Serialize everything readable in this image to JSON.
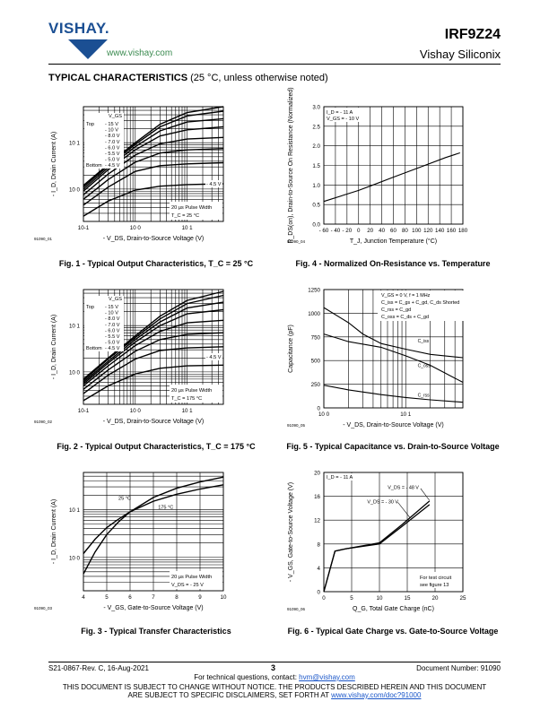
{
  "header": {
    "logo_text": "VISHAY.",
    "url": "www.vishay.com",
    "part_number": "IRF9Z24",
    "company": "Vishay Siliconix"
  },
  "section_title": "TYPICAL CHARACTERISTICS",
  "section_subtitle": "(25 °C, unless otherwise noted)",
  "footer": {
    "doc_rev": "S21-0867-Rev. C, 16-Aug-2021",
    "page": "3",
    "doc_number": "Document Number: 91090",
    "contact_prefix": "For technical questions, contact: ",
    "contact_email": "hvm@vishay.com",
    "disclaimer_1": "THIS DOCUMENT IS SUBJECT TO CHANGE WITHOUT NOTICE. THE PRODUCTS DESCRIBED HEREIN AND THIS DOCUMENT",
    "disclaimer_2_prefix": "ARE SUBJECT TO SPECIFIC DISCLAIMERS, SET FORTH AT ",
    "disclaimer_2_link": "www.vishay.com/doc?91000"
  },
  "chart_data": [
    {
      "id": "fig1",
      "type": "line",
      "title": "Fig. 1 - Typical Output Characteristics, T_C = 25 °C",
      "figure_code": "91090_01",
      "xlabel": "- V_DS, Drain-to-Source Voltage (V)",
      "ylabel": "- I_D, Drain Current (A)",
      "x_scale": "log",
      "y_scale": "log",
      "xlim": [
        0.1,
        50
      ],
      "ylim": [
        0.2,
        60
      ],
      "x_ticks": [
        {
          "v": 0.1,
          "label": "10-1"
        },
        {
          "v": 1,
          "label": "10 0"
        },
        {
          "v": 10,
          "label": "10 1"
        }
      ],
      "y_ticks": [
        {
          "v": 1,
          "label": "10 0"
        },
        {
          "v": 10,
          "label": "10 1"
        }
      ],
      "legend": {
        "header": "V_GS",
        "top_label": "Top",
        "bottom_label": "Bottom",
        "entries": [
          "- 15 V",
          "- 10 V",
          "- 8.0 V",
          "- 7.0 V",
          "- 6.0 V",
          "- 5.5 V",
          "- 5.0 V",
          "- 4.5 V"
        ]
      },
      "annotations": [
        "- 4.5 V",
        "20 µs Pulse Width",
        "T_C = 25 °C"
      ],
      "series": [
        {
          "points": [
            [
              0.1,
              1.2
            ],
            [
              0.3,
              3.4
            ],
            [
              1,
              10
            ],
            [
              3,
              25
            ],
            [
              10,
              45
            ],
            [
              50,
              60
            ]
          ]
        },
        {
          "points": [
            [
              0.1,
              1.1
            ],
            [
              0.3,
              3.2
            ],
            [
              1,
              9.2
            ],
            [
              3,
              22
            ],
            [
              10,
              38
            ],
            [
              50,
              48
            ]
          ]
        },
        {
          "points": [
            [
              0.1,
              1.0
            ],
            [
              0.3,
              2.9
            ],
            [
              1,
              8.2
            ],
            [
              3,
              18
            ],
            [
              10,
              28
            ],
            [
              50,
              33
            ]
          ]
        },
        {
          "points": [
            [
              0.1,
              0.9
            ],
            [
              0.3,
              2.6
            ],
            [
              1,
              7
            ],
            [
              3,
              14
            ],
            [
              10,
              19
            ],
            [
              50,
              22
            ]
          ]
        },
        {
          "points": [
            [
              0.1,
              0.75
            ],
            [
              0.3,
              2.1
            ],
            [
              1,
              5.4
            ],
            [
              3,
              9.5
            ],
            [
              10,
              12
            ],
            [
              50,
              13
            ]
          ]
        },
        {
          "points": [
            [
              0.1,
              0.6
            ],
            [
              0.3,
              1.6
            ],
            [
              1,
              3.8
            ],
            [
              3,
              6
            ],
            [
              10,
              7
            ],
            [
              50,
              7.5
            ]
          ]
        },
        {
          "points": [
            [
              0.1,
              0.45
            ],
            [
              0.3,
              1.1
            ],
            [
              1,
              2.4
            ],
            [
              3,
              3.2
            ],
            [
              10,
              3.5
            ],
            [
              50,
              3.7
            ]
          ]
        },
        {
          "points": [
            [
              0.1,
              0.26
            ],
            [
              0.3,
              0.55
            ],
            [
              1,
              0.95
            ],
            [
              3,
              1.15
            ],
            [
              10,
              1.25
            ],
            [
              50,
              1.3
            ]
          ]
        }
      ]
    },
    {
      "id": "fig4",
      "type": "line",
      "title": "Fig. 4 - Normalized On-Resistance vs. Temperature",
      "figure_code": "91090_04",
      "xlabel": "T_J, Junction Temperature (°C)",
      "ylabel": "R_DS(on), Drain-to-Source On Resistance (Normalized)",
      "xlim": [
        -60,
        180
      ],
      "ylim": [
        0,
        3.0
      ],
      "x_ticks": [
        {
          "v": -60,
          "label": "- 60"
        },
        {
          "v": -40,
          "label": "- 40"
        },
        {
          "v": -20,
          "label": "- 20"
        },
        {
          "v": 0,
          "label": "0"
        },
        {
          "v": 20,
          "label": "20"
        },
        {
          "v": 40,
          "label": "40"
        },
        {
          "v": 60,
          "label": "60"
        },
        {
          "v": 80,
          "label": "80"
        },
        {
          "v": 100,
          "label": "100"
        },
        {
          "v": 120,
          "label": "120"
        },
        {
          "v": 140,
          "label": "140"
        },
        {
          "v": 160,
          "label": "160"
        },
        {
          "v": 180,
          "label": "180"
        }
      ],
      "y_ticks": [
        {
          "v": 0,
          "label": "0.0"
        },
        {
          "v": 0.5,
          "label": "0.5"
        },
        {
          "v": 1.0,
          "label": "1.0"
        },
        {
          "v": 1.5,
          "label": "1.5"
        },
        {
          "v": 2.0,
          "label": "2.0"
        },
        {
          "v": 2.5,
          "label": "2.5"
        },
        {
          "v": 3.0,
          "label": "3.0"
        }
      ],
      "annotations": [
        "I_D = - 11 A",
        "V_GS = - 10 V"
      ],
      "series": [
        {
          "points": [
            [
              -60,
              0.58
            ],
            [
              0,
              0.86
            ],
            [
              25,
              1.0
            ],
            [
              60,
              1.2
            ],
            [
              100,
              1.42
            ],
            [
              150,
              1.7
            ],
            [
              175,
              1.82
            ]
          ]
        }
      ]
    },
    {
      "id": "fig2",
      "type": "line",
      "title": "Fig. 2 - Typical Output Characteristics, T_C = 175 °C",
      "figure_code": "91090_02",
      "xlabel": "- V_DS, Drain-to-Source Voltage (V)",
      "ylabel": "- I_D, Drain Current (A)",
      "x_scale": "log",
      "y_scale": "log",
      "xlim": [
        0.1,
        50
      ],
      "ylim": [
        0.2,
        60
      ],
      "x_ticks": [
        {
          "v": 0.1,
          "label": "10-1"
        },
        {
          "v": 1,
          "label": "10 0"
        },
        {
          "v": 10,
          "label": "10 1"
        }
      ],
      "y_ticks": [
        {
          "v": 1,
          "label": "10 0"
        },
        {
          "v": 10,
          "label": "10 1"
        }
      ],
      "legend": {
        "header": "V_GS",
        "top_label": "Top",
        "bottom_label": "Bottom",
        "entries": [
          "- 15 V",
          "- 10 V",
          "- 8.0 V",
          "- 7.0 V",
          "- 6.0 V",
          "- 5.5 V",
          "- 5.0 V",
          "- 4.5 V"
        ]
      },
      "annotations": [
        "- 4.5 V",
        "20 µs Pulse Width",
        "T_C = 175 °C"
      ],
      "series": [
        {
          "points": [
            [
              0.1,
              0.7
            ],
            [
              0.3,
              2.0
            ],
            [
              1,
              6
            ],
            [
              3,
              16
            ],
            [
              10,
              35
            ],
            [
              50,
              55
            ]
          ]
        },
        {
          "points": [
            [
              0.1,
              0.65
            ],
            [
              0.3,
              1.9
            ],
            [
              1,
              5.5
            ],
            [
              3,
              14
            ],
            [
              10,
              30
            ],
            [
              50,
              45
            ]
          ]
        },
        {
          "points": [
            [
              0.1,
              0.6
            ],
            [
              0.3,
              1.7
            ],
            [
              1,
              5
            ],
            [
              3,
              12
            ],
            [
              10,
              24
            ],
            [
              50,
              32
            ]
          ]
        },
        {
          "points": [
            [
              0.1,
              0.55
            ],
            [
              0.3,
              1.55
            ],
            [
              1,
              4.4
            ],
            [
              3,
              10
            ],
            [
              10,
              18
            ],
            [
              50,
              22
            ]
          ]
        },
        {
          "points": [
            [
              0.1,
              0.5
            ],
            [
              0.3,
              1.35
            ],
            [
              1,
              3.7
            ],
            [
              3,
              7.5
            ],
            [
              10,
              11.5
            ],
            [
              50,
              13
            ]
          ]
        },
        {
          "points": [
            [
              0.1,
              0.42
            ],
            [
              0.3,
              1.1
            ],
            [
              1,
              2.8
            ],
            [
              3,
              5
            ],
            [
              10,
              6.5
            ],
            [
              50,
              7
            ]
          ]
        },
        {
          "points": [
            [
              0.1,
              0.34
            ],
            [
              0.3,
              0.85
            ],
            [
              1,
              1.9
            ],
            [
              3,
              2.9
            ],
            [
              10,
              3.3
            ],
            [
              50,
              3.5
            ]
          ]
        },
        {
          "points": [
            [
              0.1,
              0.24
            ],
            [
              0.3,
              0.5
            ],
            [
              1,
              0.9
            ],
            [
              3,
              1.2
            ],
            [
              10,
              1.35
            ],
            [
              50,
              1.4
            ]
          ]
        }
      ]
    },
    {
      "id": "fig5",
      "type": "line",
      "title": "Fig. 5 - Typical Capacitance vs. Drain-to-Source Voltage",
      "figure_code": "91090_05",
      "xlabel": "- V_DS, Drain-to-Source Voltage (V)",
      "ylabel": "Capacitance (pF)",
      "x_scale": "log",
      "xlim": [
        1,
        50
      ],
      "ylim": [
        0,
        1250
      ],
      "x_ticks": [
        {
          "v": 1,
          "label": "10 0"
        },
        {
          "v": 10,
          "label": "10 1"
        }
      ],
      "y_ticks": [
        {
          "v": 0,
          "label": "0"
        },
        {
          "v": 250,
          "label": "250"
        },
        {
          "v": 500,
          "label": "500"
        },
        {
          "v": 750,
          "label": "750"
        },
        {
          "v": 1000,
          "label": "1000"
        },
        {
          "v": 1250,
          "label": "1250"
        }
      ],
      "annotations": [
        "V_GS = 0 V, f = 1 MHz",
        "C_iss = C_gs + C_gd, C_ds Shorted",
        "C_rss = C_gd",
        "C_oss = C_ds + C_gd"
      ],
      "series": [
        {
          "name": "C_iss",
          "points": [
            [
              1,
              1060
            ],
            [
              2,
              900
            ],
            [
              3,
              780
            ],
            [
              5,
              680
            ],
            [
              10,
              620
            ],
            [
              20,
              565
            ],
            [
              50,
              530
            ]
          ]
        },
        {
          "name": "C_oss",
          "points": [
            [
              1,
              780
            ],
            [
              2,
              700
            ],
            [
              5,
              640
            ],
            [
              10,
              550
            ],
            [
              20,
              450
            ],
            [
              50,
              270
            ]
          ]
        },
        {
          "name": "C_rss",
          "points": [
            [
              1,
              240
            ],
            [
              2,
              190
            ],
            [
              5,
              140
            ],
            [
              10,
              110
            ],
            [
              20,
              85
            ],
            [
              50,
              60
            ]
          ]
        }
      ]
    },
    {
      "id": "fig3",
      "type": "line",
      "title": "Fig. 3 - Typical Transfer Characteristics",
      "figure_code": "91090_03",
      "xlabel": "- V_GS, Gate-to-Source Voltage (V)",
      "ylabel": "- I_D, Drain Current (A)",
      "y_scale": "log",
      "xlim": [
        4,
        10
      ],
      "ylim": [
        0.2,
        60
      ],
      "x_ticks": [
        {
          "v": 4,
          "label": "4"
        },
        {
          "v": 5,
          "label": "5"
        },
        {
          "v": 6,
          "label": "6"
        },
        {
          "v": 7,
          "label": "7"
        },
        {
          "v": 8,
          "label": "8"
        },
        {
          "v": 9,
          "label": "9"
        },
        {
          "v": 10,
          "label": "10"
        }
      ],
      "y_ticks": [
        {
          "v": 1,
          "label": "10 0"
        },
        {
          "v": 10,
          "label": "10 1"
        }
      ],
      "annotations": [
        "20 µs Pulse Width",
        "V_DS = - 25 V"
      ],
      "series": [
        {
          "name": "25 °C",
          "points": [
            [
              4.0,
              0.45
            ],
            [
              4.5,
              1.3
            ],
            [
              5,
              3
            ],
            [
              5.5,
              5.5
            ],
            [
              6,
              9
            ],
            [
              7,
              18
            ],
            [
              8,
              28
            ],
            [
              9,
              38
            ],
            [
              10,
              48
            ]
          ]
        },
        {
          "name": "175 °C",
          "points": [
            [
              4.0,
              1.2
            ],
            [
              4.5,
              2.4
            ],
            [
              5,
              4.2
            ],
            [
              5.5,
              6.3
            ],
            [
              6,
              9
            ],
            [
              7,
              15
            ],
            [
              8,
              21
            ],
            [
              9,
              27
            ],
            [
              10,
              33
            ]
          ]
        }
      ]
    },
    {
      "id": "fig6",
      "type": "line",
      "title": "Fig. 6 - Typical Gate Charge vs. Gate-to-Source Voltage",
      "figure_code": "91090_06",
      "xlabel": "Q_G, Total Gate Charge (nC)",
      "ylabel": "- V_GS, Gate-to-Source Voltage (V)",
      "xlim": [
        0,
        25
      ],
      "ylim": [
        0,
        20
      ],
      "x_ticks": [
        {
          "v": 0,
          "label": "0"
        },
        {
          "v": 5,
          "label": "5"
        },
        {
          "v": 10,
          "label": "10"
        },
        {
          "v": 15,
          "label": "15"
        },
        {
          "v": 20,
          "label": "20"
        },
        {
          "v": 25,
          "label": "25"
        }
      ],
      "y_ticks": [
        {
          "v": 0,
          "label": "0"
        },
        {
          "v": 4,
          "label": "4"
        },
        {
          "v": 8,
          "label": "8"
        },
        {
          "v": 12,
          "label": "12"
        },
        {
          "v": 16,
          "label": "16"
        },
        {
          "v": 20,
          "label": "20"
        }
      ],
      "annotations": [
        "I_D = - 11 A",
        "V_DS = - 48 V",
        "V_DS = - 30 V",
        "For test circuit",
        "see figure 13"
      ],
      "series": [
        {
          "name": "V_DS = - 48 V",
          "points": [
            [
              0,
              0
            ],
            [
              2,
              6.8
            ],
            [
              4,
              7.2
            ],
            [
              10,
              8.2
            ],
            [
              14,
              11.2
            ],
            [
              19,
              15.2
            ]
          ]
        },
        {
          "name": "V_DS = - 30 V",
          "points": [
            [
              0,
              0
            ],
            [
              2,
              6.8
            ],
            [
              4,
              7.2
            ],
            [
              10,
              8.0
            ],
            [
              14,
              10.9
            ],
            [
              19,
              14.6
            ]
          ]
        }
      ]
    }
  ]
}
